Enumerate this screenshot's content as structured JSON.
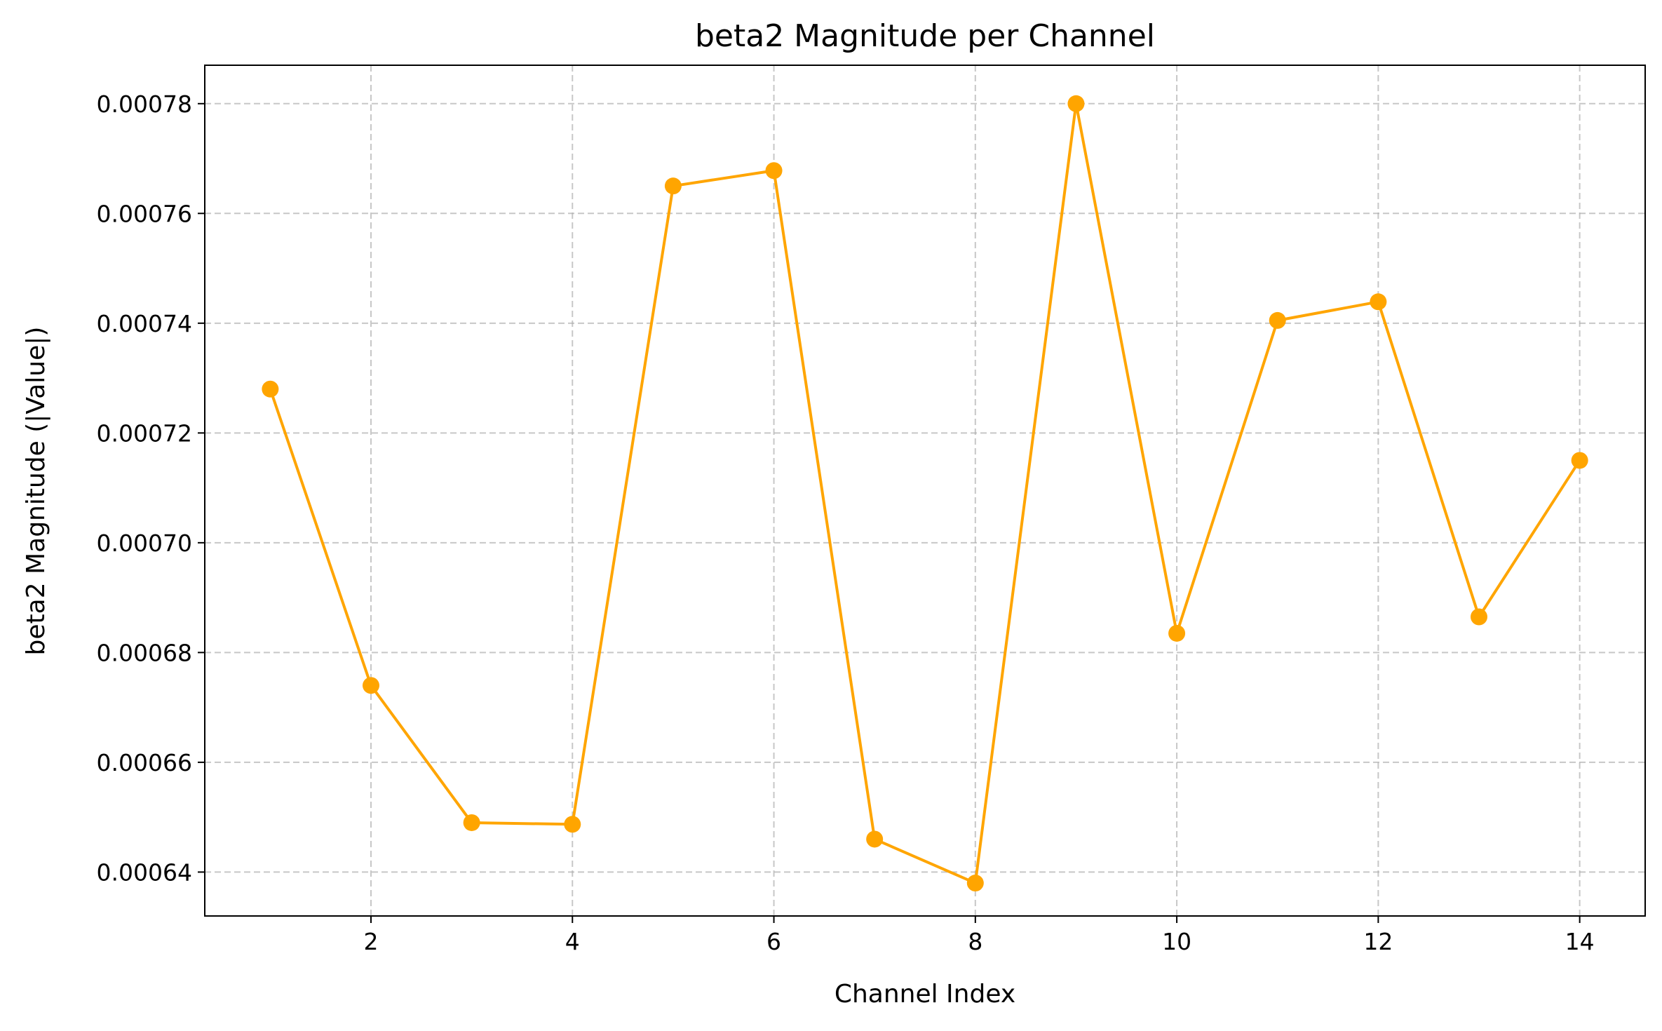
{
  "chart_data": {
    "type": "line",
    "title": "beta2 Magnitude per Channel",
    "xlabel": "Channel Index",
    "ylabel": "beta2 Magnitude (|Value|)",
    "xlim": [
      0.35,
      14.65
    ],
    "ylim": [
      0.000632,
      0.000787
    ],
    "xticks": [
      2,
      4,
      6,
      8,
      10,
      12,
      14
    ],
    "xtick_labels": [
      "2",
      "4",
      "6",
      "8",
      "10",
      "12",
      "14"
    ],
    "yticks": [
      0.00064,
      0.00066,
      0.00068,
      0.0007,
      0.00072,
      0.00074,
      0.00076,
      0.00078
    ],
    "ytick_labels": [
      "0.00064",
      "0.00066",
      "0.00068",
      "0.00070",
      "0.00072",
      "0.00074",
      "0.00076",
      "0.00078"
    ],
    "grid": true,
    "legend": "none",
    "series": [
      {
        "color": "#ffa500",
        "marker": "circle",
        "x": [
          1,
          2,
          3,
          4,
          5,
          6,
          7,
          8,
          9,
          10,
          11,
          12,
          13,
          14
        ],
        "y": [
          0.000728,
          0.000674,
          0.000649,
          0.0006487,
          0.000765,
          0.0007678,
          0.000646,
          0.000638,
          0.00078,
          0.0006835,
          0.0007405,
          0.0007439,
          0.0006865,
          0.000715
        ]
      }
    ]
  }
}
